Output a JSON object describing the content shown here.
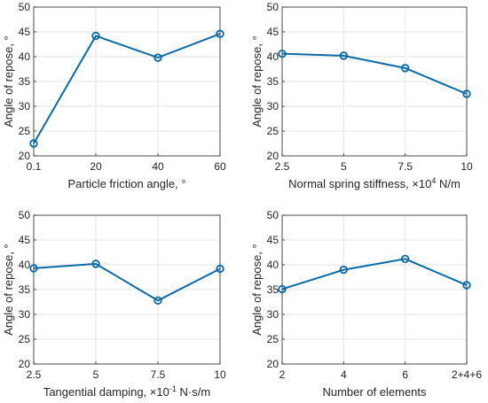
{
  "colors": {
    "series": "#0b6aa8",
    "grid": "#e6e6e6",
    "axis": "#262626"
  },
  "chart_data": [
    {
      "type": "line",
      "categories": [
        "0.1",
        "20",
        "40",
        "60"
      ],
      "values": [
        22.5,
        44.2,
        39.8,
        44.6
      ],
      "xlabel": "Particle friction angle, °",
      "ylabel": "Angle of repose, °",
      "ylim": [
        20,
        50
      ],
      "yticks": [
        20,
        25,
        30,
        35,
        40,
        45,
        50
      ],
      "grid": true,
      "marker": "circle"
    },
    {
      "type": "line",
      "categories": [
        "2.5",
        "5",
        "7.5",
        "10"
      ],
      "values": [
        40.6,
        40.2,
        37.7,
        32.5
      ],
      "xlabel": "Normal spring stiffness, ×10",
      "xlabel_sup": "4",
      "xlabel_tail": " N/m",
      "ylabel": "Angle of repose, °",
      "ylim": [
        20,
        50
      ],
      "yticks": [
        20,
        25,
        30,
        35,
        40,
        45,
        50
      ],
      "grid": true,
      "marker": "circle"
    },
    {
      "type": "line",
      "categories": [
        "2.5",
        "5",
        "7.5",
        "10"
      ],
      "values": [
        39.3,
        40.2,
        32.8,
        39.2
      ],
      "xlabel": "Tangential damping, ×10",
      "xlabel_sup": "-1",
      "xlabel_tail": " N·s/m",
      "ylabel": "Angle of repose, °",
      "ylim": [
        20,
        50
      ],
      "yticks": [
        20,
        25,
        30,
        35,
        40,
        45,
        50
      ],
      "grid": true,
      "marker": "circle"
    },
    {
      "type": "line",
      "categories": [
        "2",
        "4",
        "6",
        "2+4+6"
      ],
      "values": [
        35.1,
        39.0,
        41.2,
        35.9
      ],
      "xlabel": "Number of elements",
      "ylabel": "Angle of repose, °",
      "ylim": [
        20,
        50
      ],
      "yticks": [
        20,
        25,
        30,
        35,
        40,
        45,
        50
      ],
      "grid": true,
      "marker": "circle"
    }
  ]
}
